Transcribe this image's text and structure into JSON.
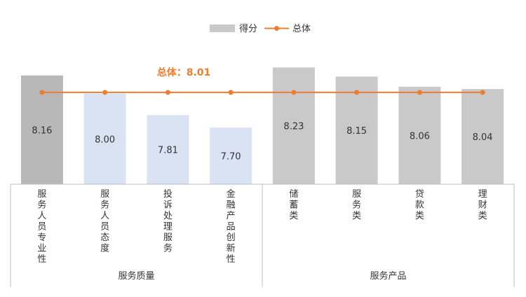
{
  "legend": {
    "bar_label": "得分",
    "line_label": "总体"
  },
  "chart_data": {
    "type": "bar",
    "categories": [
      "服务人员专业性",
      "服务人员态度",
      "投诉处理服务",
      "金融产品创新性",
      "储蓄类",
      "服务类",
      "贷款类",
      "理财类"
    ],
    "series": [
      {
        "name": "得分",
        "values": [
          8.16,
          8.0,
          7.81,
          7.7,
          8.23,
          8.15,
          8.06,
          8.04
        ]
      },
      {
        "name": "总体",
        "values": [
          8.01,
          8.01,
          8.01,
          8.01,
          8.01,
          8.01,
          8.01,
          8.01
        ]
      }
    ],
    "groups": [
      {
        "label": "服务质量",
        "count": 4
      },
      {
        "label": "服务产品",
        "count": 4
      }
    ],
    "value_labels": [
      "8.16",
      "8.00",
      "7.81",
      "7.70",
      "8.23",
      "8.15",
      "8.06",
      "8.04"
    ],
    "annotation": "总体：8.01",
    "bar_colors": [
      "#b8b8b8",
      "#dae3f3",
      "#dae3f3",
      "#dae3f3",
      "#c9c9c9",
      "#c9c9c9",
      "#c9c9c9",
      "#c9c9c9"
    ],
    "line_color": "#ed7d31",
    "axis_color": "#bfbfbf",
    "ylim": [
      7.2,
      8.3
    ],
    "grid": false,
    "legend_position": "top-center"
  }
}
